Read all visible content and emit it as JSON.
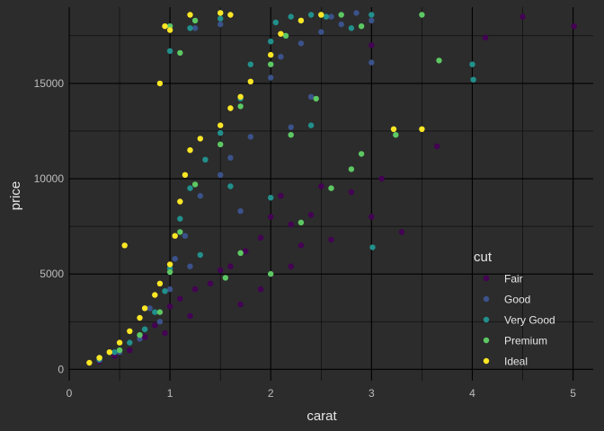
{
  "chart_data": {
    "type": "scatter",
    "title": "",
    "xlabel": "carat",
    "ylabel": "price",
    "xlim": [
      0,
      5.2
    ],
    "ylim": [
      -600,
      19000
    ],
    "x_ticks": [
      0,
      1,
      2,
      3,
      4,
      5
    ],
    "x_tick_labels": [
      "0",
      "1",
      "2",
      "3",
      "4",
      "5"
    ],
    "y_ticks": [
      0,
      5000,
      10000,
      15000
    ],
    "y_tick_labels": [
      "0",
      "5000",
      "10000",
      "15000"
    ],
    "grid": true,
    "legend": {
      "title": "cut",
      "position": "right",
      "entries": [
        "Fair",
        "Good",
        "Very Good",
        "Premium",
        "Ideal"
      ]
    },
    "colors": {
      "Fair": "#440154",
      "Good": "#3b528b",
      "Very Good": "#21908c",
      "Premium": "#5dc863",
      "Ideal": "#fde725"
    },
    "background": "#2c2c2c",
    "grid_color": "#000000",
    "series": [
      {
        "name": "Fair",
        "points": [
          [
            0.3,
            420
          ],
          [
            0.45,
            700
          ],
          [
            0.6,
            1000
          ],
          [
            0.75,
            1700
          ],
          [
            0.85,
            2300
          ],
          [
            1.0,
            3300
          ],
          [
            1.1,
            3700
          ],
          [
            1.25,
            4200
          ],
          [
            1.4,
            4500
          ],
          [
            1.5,
            5200
          ],
          [
            1.6,
            5400
          ],
          [
            1.75,
            6200
          ],
          [
            1.9,
            6900
          ],
          [
            2.0,
            8000
          ],
          [
            2.1,
            9100
          ],
          [
            2.2,
            7600
          ],
          [
            2.3,
            6500
          ],
          [
            2.4,
            8100
          ],
          [
            2.5,
            9600
          ],
          [
            2.6,
            6800
          ],
          [
            2.8,
            9300
          ],
          [
            3.0,
            8000
          ],
          [
            3.1,
            10000
          ],
          [
            3.3,
            7200
          ],
          [
            3.65,
            11700
          ],
          [
            3.0,
            17000
          ],
          [
            4.13,
            17400
          ],
          [
            4.5,
            18500
          ],
          [
            5.01,
            18000
          ],
          [
            1.7,
            3400
          ],
          [
            1.2,
            2800
          ],
          [
            0.95,
            1900
          ],
          [
            2.2,
            5400
          ],
          [
            1.9,
            4200
          ]
        ]
      },
      {
        "name": "Good",
        "points": [
          [
            0.3,
            480
          ],
          [
            0.5,
            900
          ],
          [
            0.7,
            1600
          ],
          [
            0.9,
            2500
          ],
          [
            1.0,
            4200
          ],
          [
            1.05,
            5800
          ],
          [
            1.15,
            7000
          ],
          [
            1.3,
            9100
          ],
          [
            1.5,
            10200
          ],
          [
            1.6,
            11100
          ],
          [
            1.8,
            12200
          ],
          [
            2.0,
            15300
          ],
          [
            2.1,
            16400
          ],
          [
            2.3,
            17100
          ],
          [
            2.5,
            17700
          ],
          [
            2.7,
            18100
          ],
          [
            3.0,
            18300
          ],
          [
            1.0,
            18000
          ],
          [
            1.25,
            17900
          ],
          [
            1.5,
            18100
          ],
          [
            2.4,
            14300
          ],
          [
            2.2,
            12700
          ],
          [
            2.6,
            18500
          ],
          [
            3.0,
            16100
          ],
          [
            2.85,
            18700
          ],
          [
            1.7,
            8300
          ],
          [
            1.2,
            5400
          ],
          [
            0.8,
            3200
          ]
        ]
      },
      {
        "name": "Very Good",
        "points": [
          [
            0.3,
            530
          ],
          [
            0.45,
            900
          ],
          [
            0.6,
            1400
          ],
          [
            0.75,
            2100
          ],
          [
            0.95,
            4100
          ],
          [
            1.0,
            5300
          ],
          [
            1.1,
            7900
          ],
          [
            1.2,
            9500
          ],
          [
            1.35,
            11000
          ],
          [
            1.5,
            12400
          ],
          [
            1.7,
            14200
          ],
          [
            1.8,
            16000
          ],
          [
            2.0,
            17200
          ],
          [
            2.05,
            18200
          ],
          [
            2.2,
            18500
          ],
          [
            2.4,
            18600
          ],
          [
            2.55,
            18500
          ],
          [
            1.0,
            16700
          ],
          [
            1.2,
            17900
          ],
          [
            1.5,
            18400
          ],
          [
            2.8,
            17900
          ],
          [
            2.0,
            9000
          ],
          [
            2.4,
            12800
          ],
          [
            3.01,
            6400
          ],
          [
            3.0,
            18600
          ],
          [
            4.0,
            16000
          ],
          [
            4.01,
            15200
          ],
          [
            1.6,
            9600
          ],
          [
            1.3,
            6000
          ],
          [
            0.85,
            3000
          ]
        ]
      },
      {
        "name": "Premium",
        "points": [
          [
            0.3,
            600
          ],
          [
            0.5,
            1000
          ],
          [
            0.7,
            1800
          ],
          [
            0.9,
            3000
          ],
          [
            1.0,
            5100
          ],
          [
            1.1,
            7200
          ],
          [
            1.25,
            9700
          ],
          [
            1.5,
            11800
          ],
          [
            1.7,
            13800
          ],
          [
            2.0,
            16000
          ],
          [
            2.15,
            17500
          ],
          [
            2.3,
            18300
          ],
          [
            2.5,
            18600
          ],
          [
            2.7,
            18600
          ],
          [
            3.5,
            18600
          ],
          [
            3.67,
            16200
          ],
          [
            3.24,
            12300
          ],
          [
            2.0,
            5000
          ],
          [
            2.3,
            7700
          ],
          [
            2.6,
            9500
          ],
          [
            2.8,
            10500
          ],
          [
            2.9,
            11300
          ],
          [
            1.7,
            6100
          ],
          [
            1.55,
            4800
          ],
          [
            1.0,
            18000
          ],
          [
            1.25,
            18300
          ],
          [
            1.5,
            18700
          ],
          [
            2.2,
            12300
          ],
          [
            2.45,
            14200
          ],
          [
            2.9,
            18000
          ],
          [
            1.1,
            16600
          ]
        ]
      },
      {
        "name": "Ideal",
        "points": [
          [
            0.2,
            340
          ],
          [
            0.3,
            600
          ],
          [
            0.4,
            900
          ],
          [
            0.5,
            1400
          ],
          [
            0.6,
            2000
          ],
          [
            0.7,
            2700
          ],
          [
            0.75,
            3200
          ],
          [
            0.85,
            3900
          ],
          [
            0.9,
            4500
          ],
          [
            1.0,
            5500
          ],
          [
            1.05,
            7000
          ],
          [
            1.1,
            8800
          ],
          [
            1.15,
            10200
          ],
          [
            1.2,
            11500
          ],
          [
            1.3,
            12100
          ],
          [
            1.5,
            12800
          ],
          [
            1.6,
            13700
          ],
          [
            1.7,
            14300
          ],
          [
            1.8,
            15100
          ],
          [
            2.0,
            16500
          ],
          [
            2.1,
            17600
          ],
          [
            2.3,
            18300
          ],
          [
            2.5,
            18600
          ],
          [
            3.22,
            12600
          ],
          [
            3.5,
            12600
          ],
          [
            0.55,
            6500
          ],
          [
            0.9,
            15000
          ],
          [
            1.0,
            17800
          ],
          [
            1.2,
            18600
          ],
          [
            1.5,
            18700
          ],
          [
            1.6,
            18600
          ],
          [
            0.95,
            18000
          ]
        ]
      }
    ]
  }
}
